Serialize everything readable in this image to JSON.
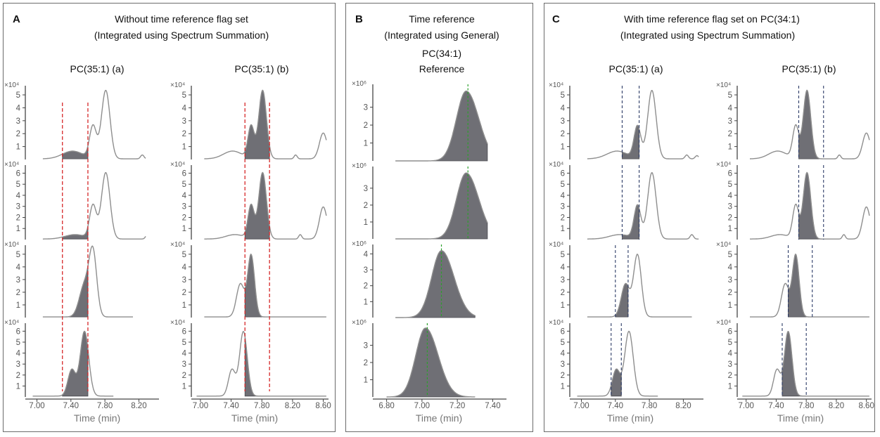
{
  "colors": {
    "red_title": "#d62728",
    "green_title": "#2ca02c",
    "blue_title": "#1f9bd6",
    "red_line": "#d62728",
    "green_line": "#2ca02c",
    "navy_line": "#2b3a66",
    "trace": "#8e8e8e",
    "fill": "#6f6f75"
  },
  "panels": [
    {
      "id": "A",
      "label": "A",
      "title": "Without time reference flag set",
      "subtitle": "(Integrated using Spectrum Summation)",
      "title_color": "#d62728"
    },
    {
      "id": "B",
      "label": "B",
      "title": "Time reference",
      "subtitle": "(Integrated using General)",
      "title_color": "#2ca02c"
    },
    {
      "id": "C",
      "label": "C",
      "title": "With time reference flag set on PC(34:1)",
      "subtitle": "(Integrated using Spectrum Summation)",
      "title_color": "#1f9bd6"
    }
  ],
  "chart_data": [
    {
      "panel": "A",
      "type": "line",
      "column_title": "PC(35:1) (a)",
      "xlabel": "Time (min)",
      "xlim": [
        6.88,
        8.42
      ],
      "xticks": [
        7.0,
        7.4,
        7.8,
        8.2
      ],
      "xtick_labels": [
        "7.00",
        "7.40",
        "7.80",
        "8.20"
      ],
      "integration_line_color": "#d62728",
      "integration_window_lines": [
        7.3,
        7.6
      ],
      "rows": [
        {
          "exponent_label": "×10⁴",
          "ylim": [
            0,
            5.6
          ],
          "yticks": [
            1,
            2,
            3,
            4,
            5
          ],
          "trace_x": [
            7.07,
            7.56,
            8.28
          ],
          "window": [
            7.3,
            7.6
          ],
          "baseline": 0.05,
          "peaks": [
            [
              7.42,
              0.6,
              0.12
            ],
            [
              7.66,
              2.5,
              0.04
            ],
            [
              7.81,
              5.3,
              0.05
            ]
          ],
          "tail": [
            [
              8.24,
              0.3,
              0.02
            ],
            [
              8.36,
              0.2,
              0.02
            ]
          ]
        },
        {
          "exponent_label": "×10⁴",
          "ylim": [
            0,
            6.6
          ],
          "yticks": [
            1,
            2,
            3,
            4,
            5,
            6
          ],
          "trace_x": [
            7.07,
            7.56,
            8.28
          ],
          "window": [
            7.3,
            7.6
          ],
          "baseline": 0.05,
          "peaks": [
            [
              7.45,
              0.4,
              0.12
            ],
            [
              7.66,
              3.0,
              0.04
            ],
            [
              7.81,
              6.0,
              0.05
            ]
          ],
          "tail": [
            [
              8.3,
              0.4,
              0.02
            ]
          ]
        },
        {
          "exponent_label": "×10⁴",
          "ylim": [
            0,
            5.6
          ],
          "yticks": [
            1,
            2,
            3,
            4,
            5
          ],
          "trace_x": [
            7.07,
            7.42,
            8.13
          ],
          "window": [
            7.3,
            7.6
          ],
          "baseline": 0.05,
          "peaks": [
            [
              7.56,
              2.5,
              0.06
            ],
            [
              7.66,
              4.9,
              0.045
            ]
          ],
          "tail": []
        },
        {
          "exponent_label": "×10⁴",
          "ylim": [
            0,
            6.6
          ],
          "yticks": [
            1,
            2,
            3,
            4,
            5,
            6
          ],
          "trace_x": [
            6.95,
            7.3,
            7.9
          ],
          "window": [
            7.3,
            7.6
          ],
          "baseline": 0.08,
          "peaks": [
            [
              7.41,
              2.4,
              0.045
            ],
            [
              7.56,
              5.9,
              0.05
            ]
          ],
          "tail": []
        }
      ]
    },
    {
      "panel": "A",
      "type": "line",
      "column_title": "PC(35:1) (b)",
      "xlabel": "Time (min)",
      "xlim": [
        6.9,
        8.65
      ],
      "xticks": [
        7.0,
        7.4,
        7.8,
        8.2,
        8.6
      ],
      "xtick_labels": [
        "7.00",
        "7.40",
        "7.80",
        "8.20",
        "8.60"
      ],
      "integration_line_color": "#d62728",
      "integration_window_lines": [
        7.58,
        7.9
      ],
      "rows": [
        {
          "exponent_label": "×10⁴",
          "ylim": [
            0,
            5.6
          ],
          "yticks": [
            1,
            2,
            3,
            4,
            5
          ],
          "trace_x": [
            7.05,
            7.6,
            8.64
          ],
          "window": [
            7.58,
            7.9
          ],
          "baseline": 0.05,
          "peaks": [
            [
              7.42,
              0.6,
              0.12
            ],
            [
              7.66,
              2.5,
              0.04
            ],
            [
              7.81,
              5.3,
              0.05
            ]
          ],
          "tail": [
            [
              8.24,
              0.3,
              0.02
            ],
            [
              8.6,
              2.0,
              0.05
            ]
          ]
        },
        {
          "exponent_label": "×10⁴",
          "ylim": [
            0,
            6.6
          ],
          "yticks": [
            1,
            2,
            3,
            4,
            5,
            6
          ],
          "trace_x": [
            7.05,
            7.6,
            8.64
          ],
          "window": [
            7.58,
            7.9
          ],
          "baseline": 0.05,
          "peaks": [
            [
              7.45,
              0.4,
              0.12
            ],
            [
              7.66,
              3.0,
              0.04
            ],
            [
              7.81,
              6.0,
              0.05
            ]
          ],
          "tail": [
            [
              8.3,
              0.4,
              0.02
            ],
            [
              8.6,
              2.9,
              0.05
            ]
          ]
        },
        {
          "exponent_label": "×10⁴",
          "ylim": [
            0,
            5.6
          ],
          "yticks": [
            1,
            2,
            3,
            4,
            5
          ],
          "trace_x": [
            7.05,
            7.58,
            8.64
          ],
          "window": [
            7.58,
            7.9
          ],
          "baseline": 0.05,
          "peaks": [
            [
              7.52,
              2.6,
              0.05
            ],
            [
              7.66,
              4.9,
              0.045
            ]
          ],
          "tail": []
        },
        {
          "exponent_label": "×10⁴",
          "ylim": [
            0,
            6.6
          ],
          "yticks": [
            1,
            2,
            3,
            4,
            5,
            6
          ],
          "trace_x": [
            6.95,
            7.56,
            8.64
          ],
          "window": [
            7.58,
            7.9
          ],
          "baseline": 0.08,
          "peaks": [
            [
              7.41,
              2.4,
              0.045
            ],
            [
              7.56,
              5.9,
              0.05
            ]
          ],
          "tail": []
        }
      ]
    },
    {
      "panel": "B",
      "type": "line",
      "column_title": "PC(34:1)",
      "column_subtitle": "Reference",
      "xlabel": "Time (min)",
      "xlim": [
        6.73,
        7.47
      ],
      "xticks": [
        6.8,
        7.0,
        7.2,
        7.4
      ],
      "xtick_labels": [
        "6.80",
        "7.00",
        "7.20",
        "7.40"
      ],
      "reference_line_color": "#2ca02c",
      "rows": [
        {
          "exponent_label": "×10⁶",
          "ylim": [
            0,
            4.2
          ],
          "yticks": [
            1,
            2,
            3
          ],
          "trace_x": [
            6.85,
            6.85,
            7.37
          ],
          "window": [
            6.85,
            7.37
          ],
          "baseline": 0.0,
          "peaks": [
            [
              7.25,
              3.9,
              0.055
            ]
          ],
          "skew": 1.3,
          "tail": [],
          "reference_time": 7.26
        },
        {
          "exponent_label": "×10⁶",
          "ylim": [
            0,
            4.2
          ],
          "yticks": [
            1,
            2,
            3
          ],
          "trace_x": [
            6.85,
            6.85,
            7.37
          ],
          "window": [
            6.85,
            7.37
          ],
          "baseline": 0.0,
          "peaks": [
            [
              7.25,
              3.9,
              0.055
            ]
          ],
          "skew": 1.3,
          "tail": [],
          "reference_time": 7.26
        },
        {
          "exponent_label": "×10⁶",
          "ylim": [
            0,
            4.5
          ],
          "yticks": [
            1,
            2,
            3,
            4
          ],
          "trace_x": [
            6.85,
            6.85,
            7.3
          ],
          "window": [
            6.85,
            7.3
          ],
          "baseline": 0.0,
          "peaks": [
            [
              7.11,
              4.2,
              0.055
            ]
          ],
          "skew": 1.3,
          "tail": [],
          "reference_time": 7.11
        },
        {
          "exponent_label": "×10⁶",
          "ylim": [
            0,
            4.2
          ],
          "yticks": [
            1,
            2,
            3
          ],
          "trace_x": [
            6.8,
            6.8,
            7.3
          ],
          "window": [
            6.8,
            7.3
          ],
          "baseline": 0.0,
          "peaks": [
            [
              7.02,
              4.0,
              0.055
            ]
          ],
          "skew": 1.3,
          "tail": [],
          "reference_time": 7.03
        }
      ]
    },
    {
      "panel": "C",
      "type": "line",
      "column_title": "PC(35:1) (a)",
      "xlabel": "Time (min)",
      "xlim": [
        6.88,
        8.42
      ],
      "xticks": [
        7.0,
        7.4,
        7.8,
        8.2
      ],
      "xtick_labels": [
        "7.00",
        "7.40",
        "7.80",
        "8.20"
      ],
      "integration_line_color": "#2b3a66",
      "rows": [
        {
          "exponent_label": "×10⁴",
          "ylim": [
            0,
            5.6
          ],
          "yticks": [
            1,
            2,
            3,
            4,
            5
          ],
          "trace_x": [
            7.07,
            7.48,
            8.38
          ],
          "window": [
            7.48,
            7.68
          ],
          "baseline": 0.05,
          "peaks": [
            [
              7.42,
              0.6,
              0.12
            ],
            [
              7.66,
              2.5,
              0.04
            ],
            [
              7.83,
              5.3,
              0.05
            ]
          ],
          "tail": [
            [
              8.24,
              0.3,
              0.02
            ],
            [
              8.36,
              0.25,
              0.02
            ]
          ]
        },
        {
          "exponent_label": "×10⁴",
          "ylim": [
            0,
            6.6
          ],
          "yticks": [
            1,
            2,
            3,
            4,
            5,
            6
          ],
          "trace_x": [
            7.07,
            7.48,
            8.38
          ],
          "window": [
            7.48,
            7.68
          ],
          "baseline": 0.05,
          "peaks": [
            [
              7.45,
              0.4,
              0.12
            ],
            [
              7.66,
              3.0,
              0.04
            ],
            [
              7.83,
              6.0,
              0.05
            ]
          ],
          "tail": [
            [
              8.3,
              0.4,
              0.02
            ]
          ]
        },
        {
          "exponent_label": "×10⁴",
          "ylim": [
            0,
            5.6
          ],
          "yticks": [
            1,
            2,
            3,
            4,
            5
          ],
          "trace_x": [
            7.07,
            7.4,
            8.3
          ],
          "window": [
            7.4,
            7.55
          ],
          "baseline": 0.05,
          "peaks": [
            [
              7.52,
              2.6,
              0.05
            ],
            [
              7.66,
              4.9,
              0.045
            ]
          ],
          "tail": []
        },
        {
          "exponent_label": "×10⁴",
          "ylim": [
            0,
            6.6
          ],
          "yticks": [
            1,
            2,
            3,
            4,
            5,
            6
          ],
          "trace_x": [
            6.95,
            7.35,
            7.9
          ],
          "window": [
            7.35,
            7.47
          ],
          "baseline": 0.08,
          "peaks": [
            [
              7.41,
              2.4,
              0.045
            ],
            [
              7.56,
              5.9,
              0.05
            ]
          ],
          "tail": []
        }
      ]
    },
    {
      "panel": "C",
      "type": "line",
      "column_title": "PC(35:1) (b)",
      "xlabel": "Time (min)",
      "xlim": [
        6.9,
        8.65
      ],
      "xticks": [
        7.0,
        7.4,
        7.8,
        8.2,
        8.6
      ],
      "xtick_labels": [
        "7.00",
        "7.40",
        "7.80",
        "8.20",
        "8.60"
      ],
      "integration_line_color": "#2b3a66",
      "rows": [
        {
          "exponent_label": "×10⁴",
          "ylim": [
            0,
            5.6
          ],
          "yticks": [
            1,
            2,
            3,
            4,
            5
          ],
          "trace_x": [
            7.05,
            7.7,
            8.64
          ],
          "window": [
            7.7,
            8.03
          ],
          "baseline": 0.05,
          "peaks": [
            [
              7.42,
              0.6,
              0.12
            ],
            [
              7.66,
              2.5,
              0.04
            ],
            [
              7.81,
              5.3,
              0.05
            ]
          ],
          "tail": [
            [
              8.24,
              0.3,
              0.02
            ],
            [
              8.6,
              2.0,
              0.05
            ]
          ]
        },
        {
          "exponent_label": "×10⁴",
          "ylim": [
            0,
            6.6
          ],
          "yticks": [
            1,
            2,
            3,
            4,
            5,
            6
          ],
          "trace_x": [
            7.05,
            7.7,
            8.64
          ],
          "window": [
            7.7,
            8.03
          ],
          "baseline": 0.05,
          "peaks": [
            [
              7.45,
              0.4,
              0.12
            ],
            [
              7.66,
              3.0,
              0.04
            ],
            [
              7.81,
              6.0,
              0.05
            ]
          ],
          "tail": [
            [
              8.3,
              0.4,
              0.02
            ],
            [
              8.6,
              2.9,
              0.05
            ]
          ]
        },
        {
          "exponent_label": "×10⁴",
          "ylim": [
            0,
            5.6
          ],
          "yticks": [
            1,
            2,
            3,
            4,
            5
          ],
          "trace_x": [
            7.05,
            7.56,
            8.64
          ],
          "window": [
            7.56,
            7.88
          ],
          "baseline": 0.05,
          "peaks": [
            [
              7.52,
              2.6,
              0.05
            ],
            [
              7.66,
              4.9,
              0.045
            ]
          ],
          "tail": []
        },
        {
          "exponent_label": "×10⁴",
          "ylim": [
            0,
            6.6
          ],
          "yticks": [
            1,
            2,
            3,
            4,
            5,
            6
          ],
          "trace_x": [
            6.95,
            7.48,
            8.64
          ],
          "window": [
            7.48,
            7.8
          ],
          "baseline": 0.08,
          "peaks": [
            [
              7.41,
              2.4,
              0.045
            ],
            [
              7.56,
              5.9,
              0.05
            ]
          ],
          "tail": []
        }
      ]
    }
  ]
}
